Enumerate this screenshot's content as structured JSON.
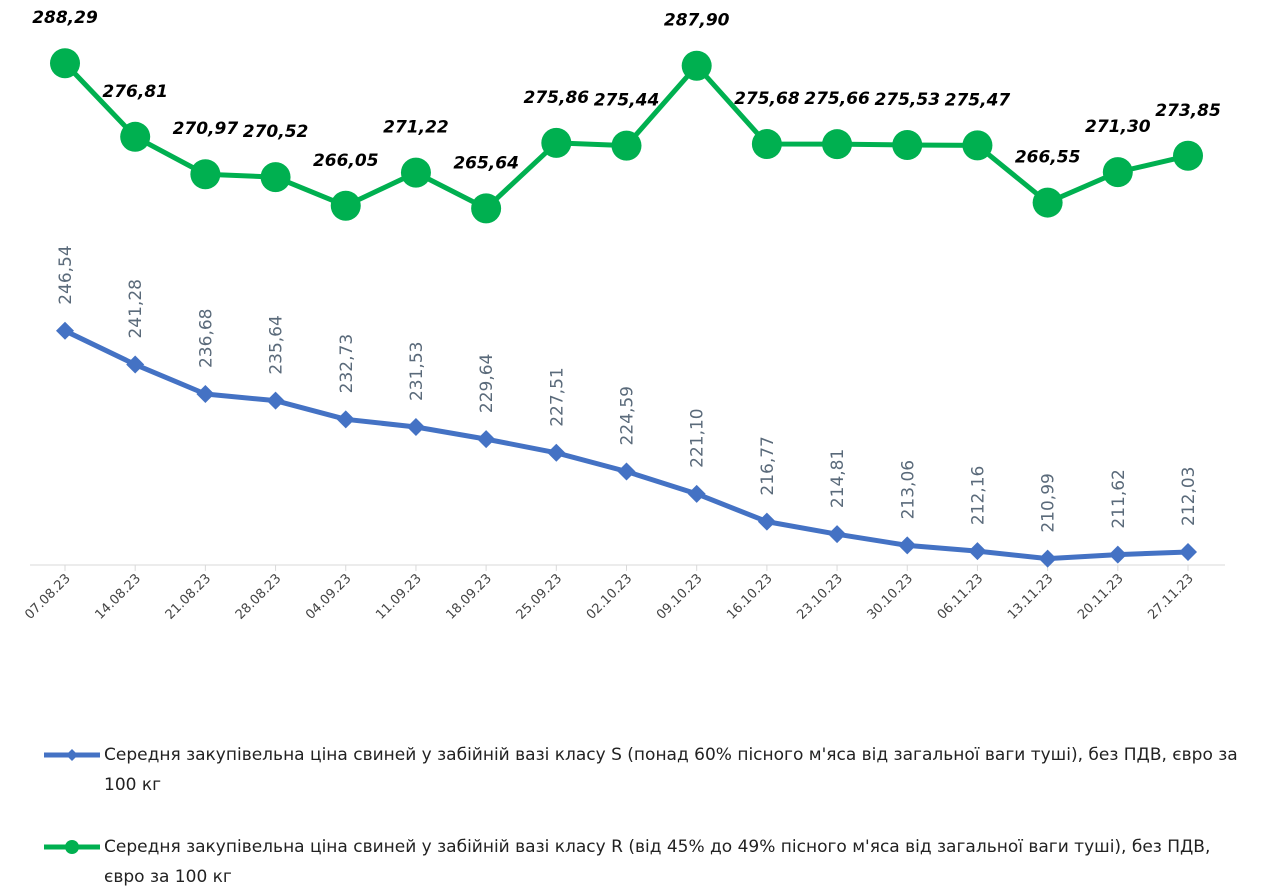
{
  "chart_data": {
    "type": "line",
    "categories": [
      "07.08.23",
      "14.08.23",
      "21.08.23",
      "28.08.23",
      "04.09.23",
      "11.09.23",
      "18.09.23",
      "25.09.23",
      "02.10.23",
      "09.10.23",
      "16.10.23",
      "23.10.23",
      "30.10.23",
      "06.11.23",
      "13.11.23",
      "20.11.23",
      "27.11.23"
    ],
    "series": [
      {
        "name": "Середня закупівельна ціна свиней у забійній вазі класу S (понад 60% пісного м'яса від загальної ваги туші), без ПДВ, євро за 100 кг",
        "color": "#4472c4",
        "marker": "diamond",
        "values": [
          246.54,
          241.28,
          236.68,
          235.64,
          232.73,
          231.53,
          229.64,
          227.51,
          224.59,
          221.1,
          216.77,
          214.81,
          213.06,
          212.16,
          210.99,
          211.62,
          212.03
        ],
        "value_labels": [
          "246,54",
          "241,28",
          "236,68",
          "235,64",
          "232,73",
          "231,53",
          "229,64",
          "227,51",
          "224,59",
          "221,10",
          "216,77",
          "214,81",
          "213,06",
          "212,16",
          "210,99",
          "211,62",
          "212,03"
        ]
      },
      {
        "name": "Середня закупівельна ціна свиней у забійній вазі класу R (від 45% до 49% пісного м'яса від загальної ваги туші), без ПДВ, євро за 100 кг",
        "color": "#00b050",
        "marker": "circle",
        "values": [
          288.29,
          276.81,
          270.97,
          270.52,
          266.05,
          271.22,
          265.64,
          275.86,
          275.44,
          287.9,
          275.68,
          275.66,
          275.53,
          275.47,
          266.55,
          271.3,
          273.85
        ],
        "value_labels": [
          "288,29",
          "276,81",
          "270,97",
          "270,52",
          "266,05",
          "271,22",
          "265,64",
          "275,86",
          "275,44",
          "287,90",
          "275,68",
          "275,66",
          "275,53",
          "275,47",
          "266,55",
          "271,30",
          "273,85"
        ]
      }
    ],
    "ylim": [
      210,
      298
    ]
  }
}
